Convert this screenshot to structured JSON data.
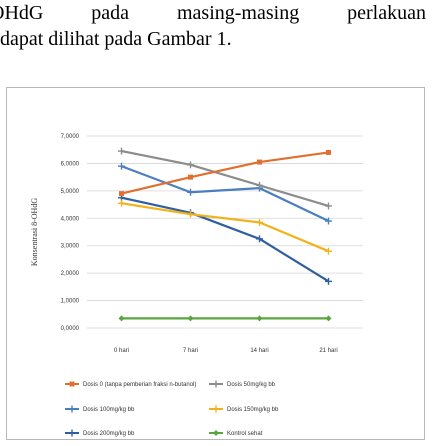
{
  "text": {
    "line1_words": [
      "OHdG",
      "pada",
      "masing-masing",
      "perlakuan"
    ],
    "line2": "dapat dilihat pada Gambar 1."
  },
  "chart_data": {
    "type": "line",
    "title": "",
    "ylabel": "Konsentrasi 8-OHdG",
    "xlabel": "",
    "categories": [
      "0 hari",
      "7 hari",
      "14 hari",
      "21 hari"
    ],
    "ylim": [
      0,
      7
    ],
    "yticks": [
      "0,0000",
      "1,0000",
      "2,0000",
      "3,0000",
      "4,0000",
      "5,0000",
      "6,0000",
      "7,0000"
    ],
    "grid": "horizontal",
    "legend_position": "bottom",
    "series": [
      {
        "name": "Dosis 0 (tanpa pemberian fraksi n-butanol)",
        "color": "#e07030",
        "values": [
          4.9,
          5.5,
          6.05,
          6.4
        ]
      },
      {
        "name": "Dosis 50mg/kg bb",
        "color": "#8c8c8c",
        "values": [
          6.45,
          5.95,
          5.2,
          4.45
        ]
      },
      {
        "name": "Dosis 100mg/kg bb",
        "color": "#4a7ec0",
        "values": [
          5.9,
          4.95,
          5.1,
          3.9
        ]
      },
      {
        "name": "Dosis 150mg/kg bb",
        "color": "#f2b21a",
        "values": [
          4.55,
          4.15,
          3.85,
          2.8
        ]
      },
      {
        "name": "Dosis 200mg/kg bb",
        "color": "#2f5fa0",
        "values": [
          4.75,
          4.2,
          3.25,
          1.7
        ]
      },
      {
        "name": "Kontrol sehat",
        "color": "#5aa540",
        "values": [
          0.35,
          0.35,
          0.35,
          0.35
        ]
      }
    ]
  }
}
